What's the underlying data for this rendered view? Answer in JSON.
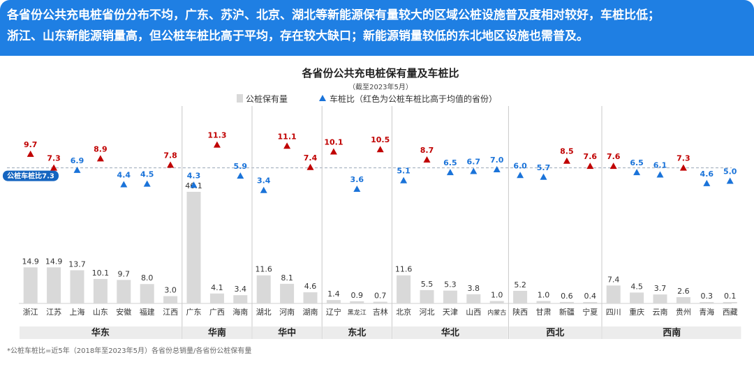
{
  "banner": {
    "line1": "各省份公共充电桩省份分布不均，广东、苏沪、北京、湖北等新能源保有量较大的区域公桩设施普及度相对较好，车桩比低；",
    "line2": "浙江、山东新能源销量高，但公桩车桩比高于平均，存在较大缺口；新能源销量较低的东北地区设施也需普及。"
  },
  "colors": {
    "banner": "#1f7fe3",
    "bar": "#d9d9d9",
    "blue_marker": "#1a73d9",
    "red_marker": "#c00000",
    "avg_line": "#9aa6b8",
    "avg_badge": "#1565c0",
    "region_bar": "#ececec"
  },
  "chart_data": {
    "type": "bar",
    "title": "各省份公共充电桩保有量及车桩比",
    "subtitle": "（截至2023年5月）",
    "legend": {
      "bar_label": "公桩保有量",
      "marker_label": "车桩比（红色为公桩车桩比高于均值的省份）",
      "placement": "top-center"
    },
    "average": {
      "value": 7.3,
      "label": "公桩车桩比7.3"
    },
    "ratio_range": [
      3.0,
      11.5
    ],
    "bar_max": 46.1,
    "groups": [
      {
        "region": "华东",
        "provinces": [
          "浙江",
          "江苏",
          "上海",
          "山东",
          "安徽",
          "福建",
          "江西"
        ],
        "stock": [
          14.9,
          14.9,
          13.7,
          10.1,
          9.7,
          8.0,
          3.0
        ],
        "ratio": [
          9.7,
          7.3,
          6.9,
          8.9,
          4.4,
          4.5,
          7.8
        ],
        "above_avg": [
          true,
          true,
          false,
          true,
          false,
          false,
          true
        ]
      },
      {
        "region": "华南",
        "provinces": [
          "广东",
          "广西",
          "海南"
        ],
        "stock": [
          46.1,
          4.1,
          3.4
        ],
        "ratio": [
          4.3,
          11.3,
          5.9
        ],
        "above_avg": [
          false,
          true,
          false
        ]
      },
      {
        "region": "华中",
        "provinces": [
          "湖北",
          "河南",
          "湖南"
        ],
        "stock": [
          11.6,
          8.1,
          4.6
        ],
        "ratio": [
          3.4,
          11.1,
          7.4
        ],
        "above_avg": [
          false,
          true,
          true
        ]
      },
      {
        "region": "东北",
        "provinces": [
          "辽宁",
          "黑龙江",
          "吉林"
        ],
        "stock": [
          1.4,
          0.9,
          0.7
        ],
        "ratio": [
          10.1,
          3.6,
          10.5
        ],
        "above_avg": [
          true,
          false,
          true
        ]
      },
      {
        "region": "华北",
        "provinces": [
          "北京",
          "河北",
          "天津",
          "山西",
          "内蒙古"
        ],
        "stock": [
          11.6,
          5.5,
          5.3,
          3.8,
          1.0
        ],
        "ratio": [
          5.1,
          8.7,
          6.5,
          6.7,
          7.0
        ],
        "above_avg": [
          false,
          true,
          false,
          false,
          false
        ]
      },
      {
        "region": "西北",
        "provinces": [
          "陕西",
          "甘肃",
          "新疆",
          "宁夏"
        ],
        "stock": [
          5.2,
          1.0,
          0.6,
          0.4
        ],
        "ratio": [
          6.0,
          5.7,
          8.5,
          7.6
        ],
        "above_avg": [
          false,
          false,
          true,
          true
        ]
      },
      {
        "region": "西南",
        "provinces": [
          "四川",
          "重庆",
          "云南",
          "贵州",
          "青海",
          "西藏"
        ],
        "stock": [
          7.4,
          4.5,
          3.7,
          2.6,
          0.3,
          0.1
        ],
        "ratio": [
          7.6,
          6.5,
          6.1,
          7.3,
          4.6,
          5.0
        ],
        "above_avg": [
          true,
          false,
          false,
          true,
          false,
          false
        ]
      }
    ],
    "footnote": "*公桩车桩比=近5年（2018年至2023年5月）各省份总销量/各省份公桩保有量"
  }
}
